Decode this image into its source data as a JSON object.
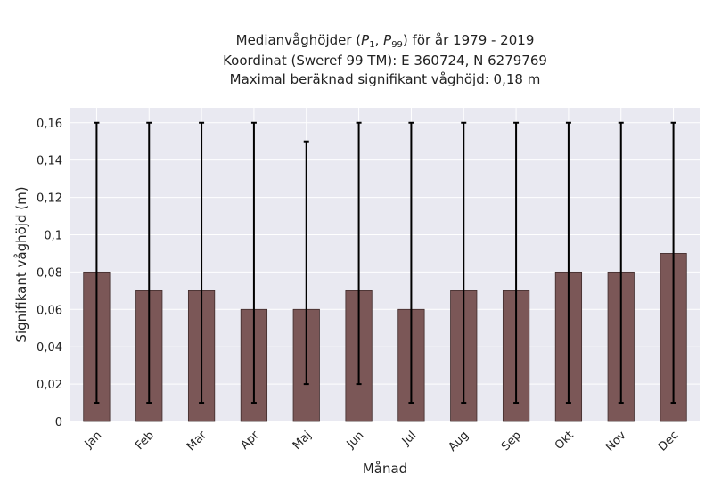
{
  "chart_data": {
    "type": "bar",
    "title_line1_prefix": "Medianvåghöjder (",
    "title_p": "P",
    "title_sub1": "1",
    "title_sep": ", ",
    "title_sub2": "99",
    "title_line1_suffix": ") för år 1979 - 2019",
    "title_line2": "Koordinat (Sweref 99 TM): E 360724, N 6279769",
    "title_line3": "Maximal beräknad signifikant våghöjd: 0,18 m",
    "xlabel": "Månad",
    "ylabel": "Signifikant våghöjd (m)",
    "categories": [
      "Jan",
      "Feb",
      "Mar",
      "Apr",
      "Maj",
      "Jun",
      "Jul",
      "Aug",
      "Sep",
      "Okt",
      "Nov",
      "Dec"
    ],
    "series": [
      {
        "values": [
          0.08,
          0.07,
          0.07,
          0.06,
          0.06,
          0.07,
          0.06,
          0.07,
          0.07,
          0.08,
          0.08,
          0.09
        ],
        "p1": [
          0.01,
          0.01,
          0.01,
          0.01,
          0.02,
          0.02,
          0.01,
          0.01,
          0.01,
          0.01,
          0.01,
          0.01
        ],
        "p99": [
          0.16,
          0.16,
          0.16,
          0.16,
          0.15,
          0.16,
          0.16,
          0.16,
          0.16,
          0.16,
          0.16,
          0.16
        ]
      }
    ],
    "yticks": [
      "0",
      "0,02",
      "0,04",
      "0,06",
      "0,08",
      "0,1",
      "0,12",
      "0,14",
      "0,16"
    ],
    "ytick_values": [
      0,
      0.02,
      0.04,
      0.06,
      0.08,
      0.1,
      0.12,
      0.14,
      0.16
    ],
    "ylim": [
      0,
      0.168
    ],
    "grid": true,
    "colors": {
      "bar": "#7b5757",
      "bar_edge": "#3f2a2a",
      "errorbar": "#000000",
      "plot_bg": "#e9e9f1",
      "grid": "#ffffff"
    }
  }
}
